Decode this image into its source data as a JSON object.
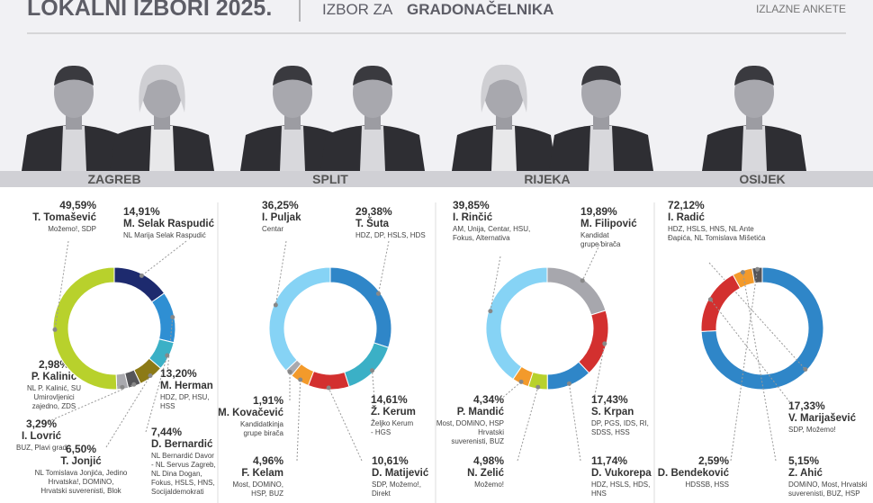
{
  "header": {
    "title": "LOKALNI IZBORI 2025.",
    "subtitle_light": "IZBOR ZA",
    "subtitle_bold": "GRADONAČELNIKA",
    "tag": "IZLAZNE ANKETE"
  },
  "chart_data": [
    {
      "type": "pie",
      "donut": true,
      "title": "ZAGREB",
      "categories": [
        "M. Selak Raspudić",
        "M. Herman",
        "D. Bernardić",
        "T. Jonjić",
        "I. Lovrić",
        "P. Kalinić",
        "T. Tomašević"
      ],
      "values": [
        14.91,
        13.2,
        7.44,
        6.5,
        3.29,
        2.98,
        49.59
      ],
      "value_labels": [
        "14,91%",
        "13,20%",
        "7,44%",
        "6,50%",
        "3,29%",
        "2,98%",
        "49,59%"
      ],
      "colors": [
        "#1d2a6e",
        "#2f8fd3",
        "#3bb0c6",
        "#8c7a16",
        "#555559",
        "#a9a9ae",
        "#b8d12c"
      ],
      "parties": [
        [
          "NL Marija Selak Raspudić"
        ],
        [
          "HDZ, DP, HSU,",
          "HSS"
        ],
        [
          "NL Bernardić Davor",
          "- NL Servus Zagreb,",
          "NL Dina Dogan,",
          "Fokus, HSLS, HNS,",
          "Socijaldemokrati"
        ],
        [
          "NL Tomislava Jonjića, Jedino",
          "Hrvatska!, DOMiNO,",
          "Hrvatski suverenisti, Blok"
        ],
        [
          "BUZ, Plavi grad"
        ],
        [
          "NL P. Kalinić, SU",
          "Umirovljenici",
          "zajedno, ZDS"
        ],
        [
          "Možemo!, SDP"
        ]
      ]
    },
    {
      "type": "pie",
      "donut": true,
      "title": "SPLIT",
      "categories": [
        "T. Šuta",
        "Ž. Kerum",
        "D. Matijević",
        "F. Kelam",
        "M. Kovačević",
        "I. Puljak"
      ],
      "values": [
        29.38,
        14.61,
        10.61,
        4.96,
        1.91,
        36.25
      ],
      "value_labels": [
        "29,38%",
        "14,61%",
        "10,61%",
        "4,96%",
        "1,91%",
        "36,25%"
      ],
      "colors": [
        "#2f86c8",
        "#3bb0c6",
        "#d3302f",
        "#f39a2b",
        "#a9a9ae",
        "#86d3f5"
      ],
      "parties": [
        [
          "HDZ, DP, HSLS, HDS"
        ],
        [
          "Željko Kerum",
          "- HGS"
        ],
        [
          "SDP, Možemo!,",
          "Direkt"
        ],
        [
          "Most, DOMiNO,",
          "HSP, BUZ"
        ],
        [
          "Kandidatkinja",
          "grupe birača"
        ],
        [
          "Centar"
        ]
      ]
    },
    {
      "type": "pie",
      "donut": true,
      "title": "RIJEKA",
      "categories": [
        "M. Filipović",
        "S. Krpan",
        "D. Vukorepa",
        "N. Zelić",
        "P. Mandić",
        "I. Rinčić"
      ],
      "values": [
        19.89,
        17.43,
        11.74,
        4.98,
        4.34,
        39.85
      ],
      "value_labels": [
        "19,89%",
        "17,43%",
        "11,74%",
        "4,98%",
        "4,34%",
        "39,85%"
      ],
      "colors": [
        "#a7a7ad",
        "#d3302f",
        "#2f86c8",
        "#b8d12c",
        "#f39a2b",
        "#86d3f5"
      ],
      "parties": [
        [
          "Kandidat",
          "grupe birača"
        ],
        [
          "DP, PGS, IDS, RI,",
          "SDSS, HSS"
        ],
        [
          "HDZ, HSLS, HDS,",
          "HNS"
        ],
        [
          "Možemo!"
        ],
        [
          "Most, DOMiNO, HSP",
          "Hrvatski",
          "suverenisti, BUZ"
        ],
        [
          "AM, Unija, Centar, HSU,",
          "Fokus, Alternativa"
        ]
      ]
    },
    {
      "type": "pie",
      "donut": true,
      "title": "OSIJEK",
      "categories": [
        "I. Radić",
        "V. Marijašević",
        "Z. Ahić",
        "D. Bendeković"
      ],
      "values": [
        72.12,
        17.33,
        5.15,
        2.59
      ],
      "value_labels": [
        "72,12%",
        "17,33%",
        "5,15%",
        "2,59%"
      ],
      "colors": [
        "#2f86c8",
        "#d3302f",
        "#f39a2b",
        "#555559"
      ],
      "parties": [
        [
          "HDZ, HSLS, HNS, NL Ante",
          "Đapića, NL Tomislava Mišetića"
        ],
        [
          "SDP, Možemo!"
        ],
        [
          "DOMiNO, Most, Hrvatski",
          "suverenisti, BUZ, HSP"
        ],
        [
          "HDSSB, HSS"
        ]
      ]
    }
  ]
}
